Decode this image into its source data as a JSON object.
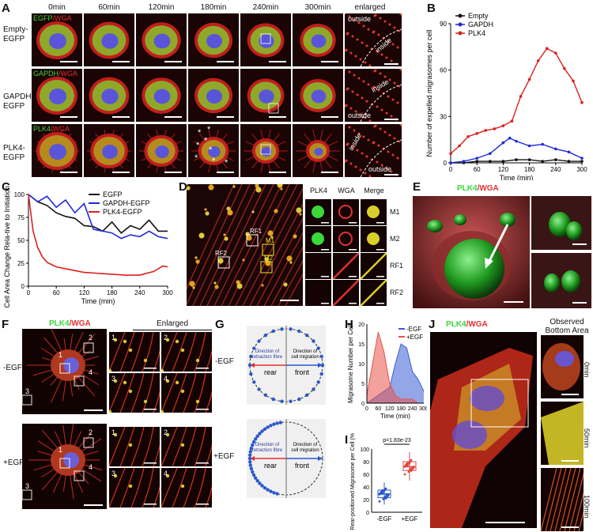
{
  "panels": [
    "A",
    "B",
    "C",
    "D",
    "E",
    "F",
    "G",
    "H",
    "I",
    "J"
  ],
  "panelA": {
    "timepoints": [
      "0min",
      "60min",
      "120min",
      "180min",
      "240min",
      "300min",
      "enlarged"
    ],
    "rows": [
      {
        "label_line1": "Empty-",
        "label_line2": "EGFP",
        "stain": "EGFP/WGA",
        "tag": "EGFP",
        "enlarged_labels": [
          "outside",
          "inside"
        ]
      },
      {
        "label_line1": "GAPDH-",
        "label_line2": "EGFP",
        "stain": "GAPDH/WGA",
        "tag": "GAPDH",
        "enlarged_labels": [
          "inside",
          "outside"
        ]
      },
      {
        "label_line1": "PLK4-",
        "label_line2": "EGFP",
        "stain": "PLK4/WGA",
        "tag": "PLK4",
        "enlarged_labels": [
          "inside",
          "outside"
        ]
      }
    ],
    "wga": "WGA",
    "asterisk": "*"
  },
  "chart_data": [
    {
      "panel": "B",
      "type": "line",
      "ylabel": "Number of expelled migrasomes per cell",
      "xlabel": "Time (min)",
      "xlim": [
        0,
        300
      ],
      "ylim": [
        0,
        90
      ],
      "xticks": [
        0,
        60,
        120,
        180,
        240,
        300
      ],
      "yticks": [
        0,
        30,
        60,
        90
      ],
      "legend": "top-left",
      "series": [
        {
          "name": "Empty",
          "color": "#111111",
          "x": [
            0,
            30,
            60,
            90,
            120,
            150,
            180,
            210,
            240,
            270,
            300
          ],
          "y": [
            0,
            0,
            1,
            1,
            1,
            2,
            2,
            1,
            2,
            1,
            1
          ]
        },
        {
          "name": "GAPDH",
          "color": "#1f2bd6",
          "x": [
            0,
            30,
            60,
            90,
            120,
            135,
            150,
            180,
            210,
            240,
            270,
            300
          ],
          "y": [
            0,
            1,
            3,
            6,
            13,
            16,
            14,
            11,
            12,
            9,
            7,
            3
          ]
        },
        {
          "name": "PLK4",
          "color": "#d8211f",
          "x": [
            0,
            20,
            40,
            60,
            80,
            100,
            120,
            140,
            160,
            180,
            200,
            220,
            240,
            260,
            280,
            300
          ],
          "y": [
            6,
            11,
            17,
            19,
            21,
            22,
            24,
            27,
            43,
            54,
            66,
            74,
            71,
            61,
            53,
            39
          ]
        }
      ]
    },
    {
      "panel": "C",
      "type": "line",
      "ylabel": "Cell Area Change Rela-tive to Initiation (%)",
      "xlabel": "Time (min)",
      "xlim": [
        0,
        300
      ],
      "ylim": [
        0,
        100
      ],
      "xticks": [
        0,
        60,
        120,
        180,
        240,
        300
      ],
      "yticks": [
        0,
        25,
        50,
        75,
        100
      ],
      "legend": "top-right",
      "series": [
        {
          "name": "EGFP",
          "color": "#111111",
          "x": [
            0,
            20,
            40,
            60,
            80,
            100,
            120,
            140,
            160,
            180,
            200,
            220,
            240,
            260,
            280,
            300
          ],
          "y": [
            100,
            92,
            88,
            80,
            76,
            74,
            66,
            65,
            60,
            70,
            58,
            66,
            62,
            72,
            60,
            60
          ]
        },
        {
          "name": "GAPDH-EGFP",
          "color": "#1f2bd6",
          "x": [
            0,
            20,
            40,
            60,
            80,
            100,
            120,
            140,
            160,
            180,
            200,
            220,
            240,
            260,
            280,
            300
          ],
          "y": [
            100,
            92,
            98,
            86,
            94,
            80,
            90,
            62,
            60,
            58,
            52,
            56,
            54,
            60,
            54,
            52
          ]
        },
        {
          "name": "PLK4-EGFP",
          "color": "#d8211f",
          "x": [
            0,
            10,
            20,
            30,
            40,
            60,
            80,
            100,
            120,
            150,
            180,
            210,
            240,
            270,
            290,
            300
          ],
          "y": [
            100,
            60,
            42,
            32,
            26,
            21,
            19,
            17,
            15,
            14,
            13,
            12,
            12,
            16,
            22,
            21
          ]
        }
      ]
    },
    {
      "panel": "H",
      "type": "area",
      "ylabel": "Migrasome Number per Cell",
      "xlabel": "Time (min)",
      "xlim": [
        0,
        300
      ],
      "ylim": [
        0,
        20
      ],
      "xticks": [
        0,
        60,
        120,
        180,
        240,
        300
      ],
      "yticks": [
        0,
        5,
        10,
        15,
        20
      ],
      "legend": "top-right",
      "series": [
        {
          "name": "-EGF",
          "color": "#3a5fd6",
          "x": [
            0,
            60,
            120,
            150,
            180,
            210,
            240,
            270,
            300
          ],
          "y": [
            0,
            2,
            4,
            10,
            15,
            14,
            8,
            6,
            3
          ]
        },
        {
          "name": "+EGF",
          "color": "#e8534c",
          "x": [
            0,
            30,
            60,
            90,
            120,
            150,
            180,
            210,
            240,
            270,
            300
          ],
          "y": [
            2,
            10,
            18,
            13,
            5,
            2,
            1,
            1,
            1,
            0,
            0
          ]
        }
      ]
    },
    {
      "panel": "I",
      "type": "scatter",
      "ylabel": "Rear-positioned Migrasome per Cell (%)",
      "categories": [
        "-EGF",
        "+EGF"
      ],
      "ylim": [
        0,
        100
      ],
      "yticks": [
        0,
        20,
        40,
        60,
        80,
        100
      ],
      "annotation": "p=1.83e-23",
      "series": [
        {
          "name": "-EGF",
          "color": "#2b57c9",
          "median": 29,
          "q1": 23,
          "q3": 35,
          "min": 12,
          "max": 47
        },
        {
          "name": "+EGF",
          "color": "#e0473f",
          "median": 72,
          "q1": 66,
          "q3": 80,
          "min": 50,
          "max": 95
        }
      ]
    }
  ],
  "panelD": {
    "rois": [
      "RF1",
      "M1",
      "RF2",
      "M2"
    ],
    "headers": [
      "PLK4",
      "WGA",
      "Merge"
    ],
    "rows": [
      "M1",
      "M2",
      "RF1",
      "RF2"
    ]
  },
  "panelE": {
    "stain": "PLK4/WGA",
    "tag": "PLK4",
    "wga": "WGA"
  },
  "panelF": {
    "stain": "PLK4/WGA",
    "tag": "PLK4",
    "wga": "WGA",
    "header": "Enlarged",
    "rows": [
      "-EGF",
      "+EGF"
    ],
    "boxes": [
      "1",
      "2",
      "3",
      "4"
    ]
  },
  "panelG": {
    "rows": [
      "-EGF",
      "+EGF"
    ],
    "left_text": [
      "Direction of",
      "retraction fibre"
    ],
    "right_text": [
      "Direction of",
      "cell migration"
    ],
    "rear": "rear",
    "front": "front"
  },
  "panelJ": {
    "stain": "PLK4/WGA",
    "tag": "PLK4",
    "wga": "WGA",
    "header_line1": "Observed",
    "header_line2": "Bottom Area",
    "times": [
      "0min",
      "50min",
      "100min"
    ]
  },
  "colors": {
    "green": "#3ad83a",
    "red": "#e23030",
    "blue": "#2b57c9"
  }
}
